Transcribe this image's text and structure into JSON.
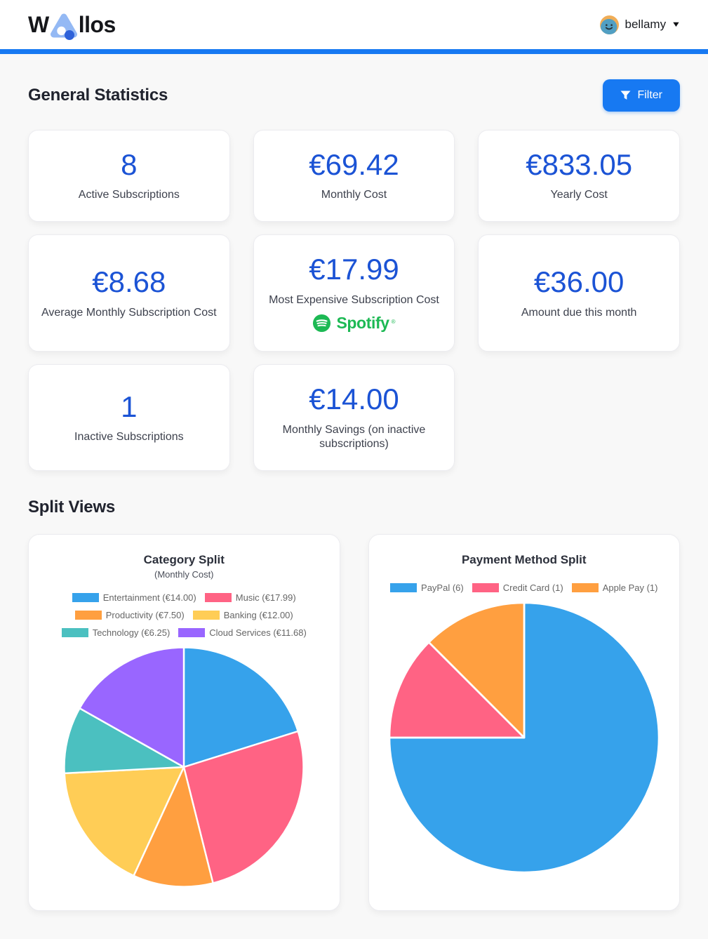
{
  "header": {
    "logo_prefix": "W",
    "logo_suffix": "llos",
    "user": "bellamy",
    "menu_caret": "▼"
  },
  "colors": {
    "accent": "#1779f2",
    "value_blue": "#1b53d5",
    "spotify_green": "#1DB954"
  },
  "general_statistics": {
    "title": "General Statistics",
    "filter_label": "Filter",
    "cards": [
      {
        "value": "8",
        "label": "Active Subscriptions"
      },
      {
        "value": "€69.42",
        "label": "Monthly Cost"
      },
      {
        "value": "€833.05",
        "label": "Yearly Cost"
      },
      {
        "value": "€8.68",
        "label": "Average Monthly Subscription Cost"
      },
      {
        "value": "€17.99",
        "label": "Most Expensive Subscription Cost",
        "logo_text": "Spotify",
        "logo_mark": "®"
      },
      {
        "value": "€36.00",
        "label": "Amount due this month"
      },
      {
        "value": "1",
        "label": "Inactive Subscriptions"
      },
      {
        "value": "€14.00",
        "label": "Monthly Savings (on inactive subscriptions)"
      }
    ]
  },
  "split_views": {
    "title": "Split Views"
  },
  "chart_data": [
    {
      "type": "pie",
      "title": "Category Split",
      "subtitle": "(Monthly Cost)",
      "categories": [
        "Entertainment",
        "Music",
        "Productivity",
        "Banking",
        "Technology",
        "Cloud Services"
      ],
      "labels": [
        "Entertainment (€14.00)",
        "Music (€17.99)",
        "Productivity (€7.50)",
        "Banking (€12.00)",
        "Technology (€6.25)",
        "Cloud Services (€11.68)"
      ],
      "values": [
        14.0,
        17.99,
        7.5,
        12.0,
        6.25,
        11.68
      ],
      "colors": [
        "#36A2EB",
        "#FF6384",
        "#FF9F40",
        "#FFCD56",
        "#4BC0C0",
        "#9966FF"
      ],
      "legend_position": "top",
      "start_angle_deg": -90,
      "direction": "clockwise"
    },
    {
      "type": "pie",
      "title": "Payment Method Split",
      "categories": [
        "PayPal",
        "Credit Card",
        "Apple Pay"
      ],
      "labels": [
        "PayPal (6)",
        "Credit Card (1)",
        "Apple Pay (1)"
      ],
      "values": [
        6,
        1,
        1
      ],
      "colors": [
        "#36A2EB",
        "#FF6384",
        "#FF9F40"
      ],
      "legend_position": "top",
      "start_angle_deg": -90,
      "direction": "clockwise"
    }
  ]
}
